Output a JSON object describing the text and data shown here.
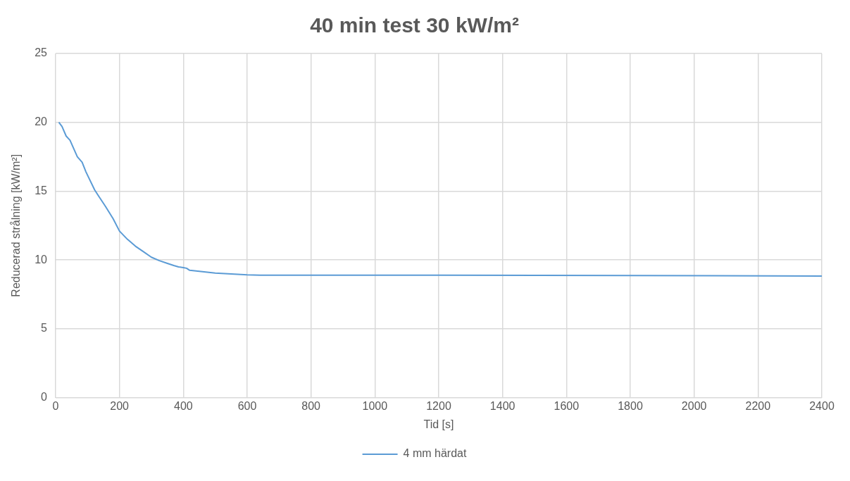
{
  "chart_data": {
    "type": "line",
    "title": "40 min test 30 kW/m²",
    "xlabel": "Tid [s]",
    "ylabel": "Reducerad strålning [kW/m²]",
    "xlim": [
      0,
      2400
    ],
    "xticks": [
      0,
      200,
      400,
      600,
      800,
      1000,
      1200,
      1400,
      1600,
      1800,
      2000,
      2200,
      2400
    ],
    "ylim": [
      0,
      25
    ],
    "yticks": [
      0,
      5,
      10,
      15,
      20,
      25
    ],
    "grid": true,
    "legend": "bottom",
    "marker": "none",
    "line_style": "solid",
    "series": [
      {
        "name": "4 mm härdat",
        "color": "#5b9bd5",
        "x": [
          10,
          20,
          33,
          45,
          68,
          83,
          95,
          122,
          133,
          156,
          180,
          200,
          225,
          250,
          275,
          300,
          325,
          350,
          370,
          385,
          400,
          410,
          420,
          440,
          500,
          600,
          640,
          800,
          1200,
          1800,
          2400
        ],
        "values": [
          20,
          19.7,
          19,
          18.7,
          17.5,
          17.1,
          16.4,
          15.1,
          14.7,
          13.9,
          13,
          12.1,
          11.5,
          11,
          10.6,
          10.2,
          9.95,
          9.75,
          9.6,
          9.5,
          9.45,
          9.4,
          9.25,
          9.2,
          9.05,
          8.92,
          8.9,
          8.9,
          8.9,
          8.87,
          8.83
        ]
      }
    ]
  }
}
